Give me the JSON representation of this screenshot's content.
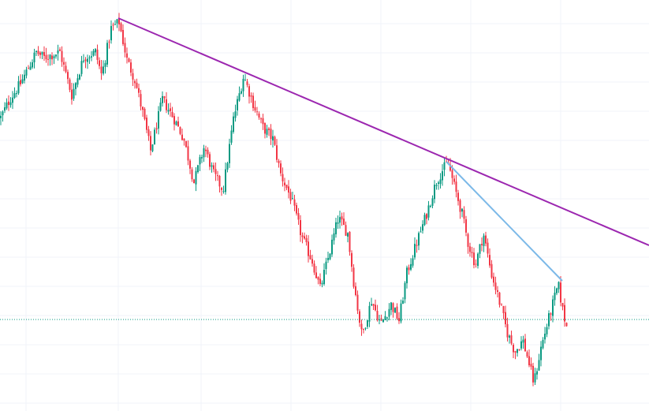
{
  "chart_data": {
    "type": "candlestick",
    "title": "",
    "xlabel": "",
    "ylabel": "",
    "grid": true,
    "legend": "none",
    "ylim": [
      0,
      521
    ],
    "colors": {
      "up": "#089981",
      "down": "#f23645",
      "grid": "#f0f3fa",
      "resistance_line": "#9c27b0",
      "trend_line": "#7cb9e8",
      "current_price_line": "#089981"
    },
    "waypoints": [
      {
        "x": 0,
        "y": 372
      },
      {
        "x": 12,
        "y": 396
      },
      {
        "x": 25,
        "y": 415
      },
      {
        "x": 45,
        "y": 455
      },
      {
        "x": 55,
        "y": 448
      },
      {
        "x": 75,
        "y": 455
      },
      {
        "x": 90,
        "y": 400
      },
      {
        "x": 105,
        "y": 448
      },
      {
        "x": 120,
        "y": 455
      },
      {
        "x": 128,
        "y": 425
      },
      {
        "x": 140,
        "y": 485
      },
      {
        "x": 150,
        "y": 493
      },
      {
        "x": 160,
        "y": 445
      },
      {
        "x": 170,
        "y": 420
      },
      {
        "x": 180,
        "y": 378
      },
      {
        "x": 190,
        "y": 330
      },
      {
        "x": 205,
        "y": 395
      },
      {
        "x": 220,
        "y": 370
      },
      {
        "x": 232,
        "y": 345
      },
      {
        "x": 245,
        "y": 290
      },
      {
        "x": 258,
        "y": 335
      },
      {
        "x": 270,
        "y": 300
      },
      {
        "x": 282,
        "y": 280
      },
      {
        "x": 295,
        "y": 370
      },
      {
        "x": 308,
        "y": 425
      },
      {
        "x": 320,
        "y": 390
      },
      {
        "x": 332,
        "y": 360
      },
      {
        "x": 345,
        "y": 345
      },
      {
        "x": 355,
        "y": 300
      },
      {
        "x": 368,
        "y": 270
      },
      {
        "x": 382,
        "y": 220
      },
      {
        "x": 395,
        "y": 190
      },
      {
        "x": 405,
        "y": 155
      },
      {
        "x": 418,
        "y": 205
      },
      {
        "x": 428,
        "y": 245
      },
      {
        "x": 440,
        "y": 225
      },
      {
        "x": 448,
        "y": 160
      },
      {
        "x": 458,
        "y": 95
      },
      {
        "x": 470,
        "y": 140
      },
      {
        "x": 482,
        "y": 110
      },
      {
        "x": 495,
        "y": 135
      },
      {
        "x": 505,
        "y": 115
      },
      {
        "x": 515,
        "y": 175
      },
      {
        "x": 528,
        "y": 215
      },
      {
        "x": 540,
        "y": 250
      },
      {
        "x": 552,
        "y": 290
      },
      {
        "x": 560,
        "y": 305
      },
      {
        "x": 567,
        "y": 315
      },
      {
        "x": 575,
        "y": 285
      },
      {
        "x": 585,
        "y": 250
      },
      {
        "x": 592,
        "y": 215
      },
      {
        "x": 602,
        "y": 185
      },
      {
        "x": 612,
        "y": 225
      },
      {
        "x": 622,
        "y": 175
      },
      {
        "x": 632,
        "y": 140
      },
      {
        "x": 642,
        "y": 100
      },
      {
        "x": 652,
        "y": 75
      },
      {
        "x": 662,
        "y": 90
      },
      {
        "x": 670,
        "y": 60
      },
      {
        "x": 676,
        "y": 35
      },
      {
        "x": 685,
        "y": 80
      },
      {
        "x": 697,
        "y": 125
      },
      {
        "x": 707,
        "y": 160
      },
      {
        "x": 713,
        "y": 125
      },
      {
        "x": 718,
        "y": 105
      }
    ],
    "lines": [
      {
        "name": "",
        "color": "#9c27b0",
        "from": {
          "x": 150,
          "y": 498
        },
        "to": {
          "x": 823,
          "y": 210
        }
      },
      {
        "name": "",
        "color": "#7cb9e8",
        "from": {
          "x": 566,
          "y": 316
        },
        "to": {
          "x": 713,
          "y": 165
        }
      },
      {
        "name": "",
        "color": "#089981",
        "dotted": true,
        "from": {
          "x": 0,
          "y": 116
        },
        "to": {
          "x": 823,
          "y": 116
        }
      }
    ]
  }
}
